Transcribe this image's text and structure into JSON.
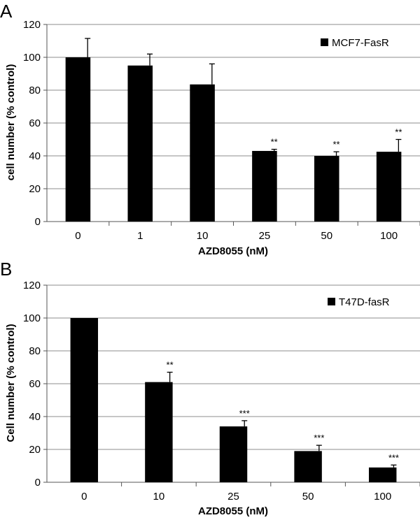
{
  "chart_data": [
    {
      "type": "bar",
      "panel_label": "A",
      "title": "",
      "categories": [
        "0",
        "1",
        "10",
        "25",
        "50",
        "100"
      ],
      "series": [
        {
          "name": "MCF7-FasR",
          "values": [
            100,
            95,
            83.5,
            43,
            40,
            42.5
          ],
          "errors": [
            11.5,
            7,
            12.5,
            1,
            2.5,
            7.5
          ],
          "significance": [
            "",
            "",
            "",
            "**",
            "**",
            "**"
          ]
        }
      ],
      "xlabel": "AZD8055 (nM)",
      "ylabel": "cell number (% control)",
      "ylim": [
        0,
        120
      ],
      "yticks": [
        "0",
        "20",
        "40",
        "60",
        "80",
        "100",
        "120"
      ],
      "grid": true,
      "legend_position": "top-right",
      "color": "#000000"
    },
    {
      "type": "bar",
      "panel_label": "B",
      "title": "",
      "categories": [
        "0",
        "10",
        "25",
        "50",
        "100"
      ],
      "series": [
        {
          "name": "T47D-fasR",
          "values": [
            100,
            61,
            34,
            19,
            9
          ],
          "errors": [
            0,
            6,
            3.5,
            3.5,
            1.5
          ],
          "significance": [
            "",
            "**",
            "***",
            "***",
            "***"
          ]
        }
      ],
      "xlabel": "AZD8055 (nM)",
      "ylabel": "Cell number (% control)",
      "ylim": [
        0,
        120
      ],
      "yticks": [
        "0",
        "20",
        "40",
        "60",
        "80",
        "100",
        "120"
      ],
      "grid": true,
      "legend_position": "top-right",
      "color": "#000000"
    }
  ]
}
